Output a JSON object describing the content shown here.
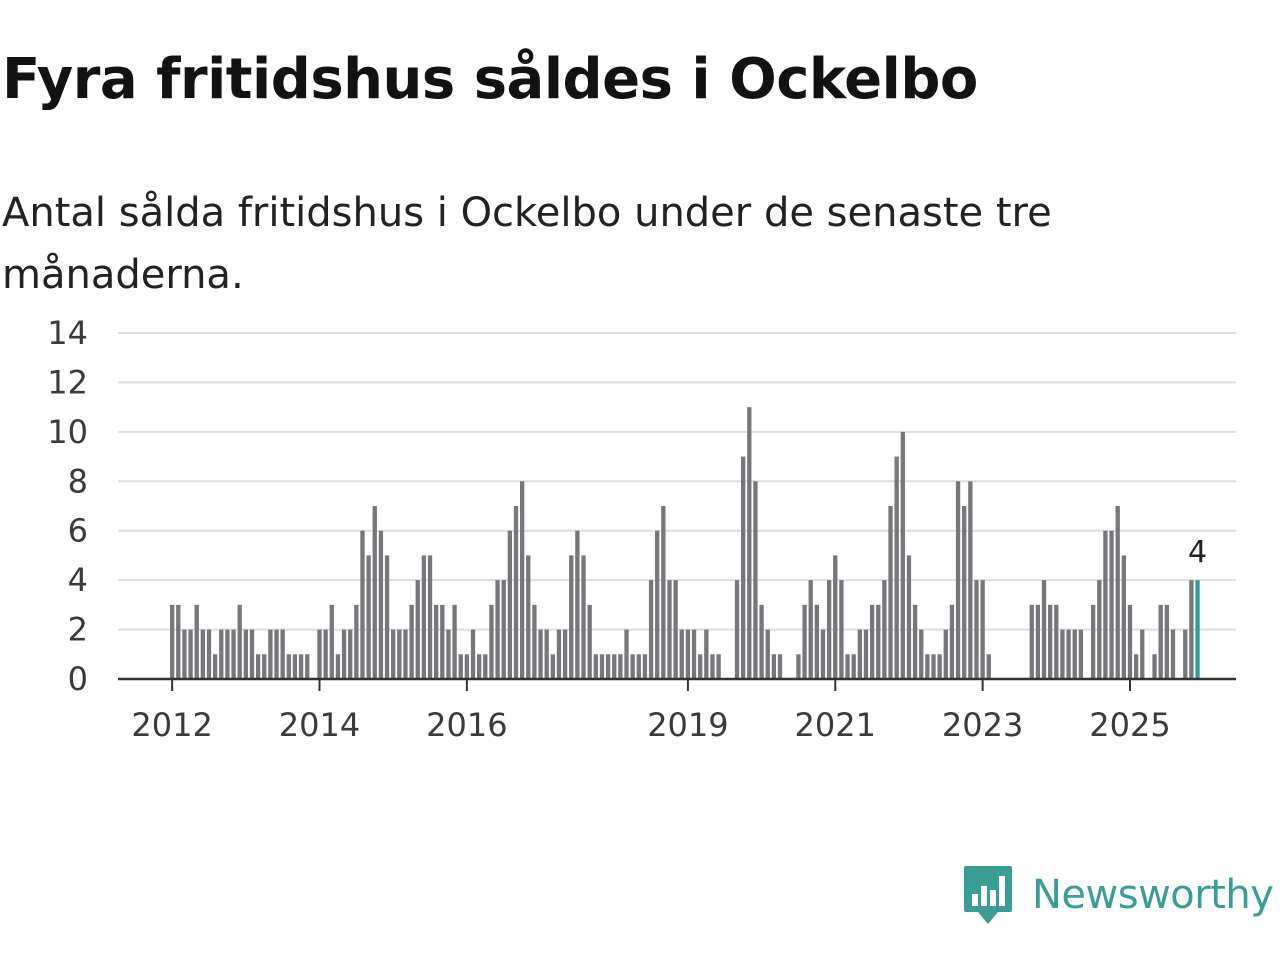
{
  "header": {
    "title": "Fyra fritidshus såldes i Ockelbo",
    "subtitle": "Antal sålda fritidshus i Ockelbo under de senaste tre månaderna."
  },
  "brand": {
    "name": "Newsworthy",
    "color": "#3a9e95"
  },
  "chart_data": {
    "type": "bar",
    "title": "Fyra fritidshus såldes i Ockelbo",
    "subtitle": "Antal sålda fritidshus i Ockelbo under de senaste tre månaderna.",
    "xlabel": "",
    "ylabel": "",
    "ylim": [
      0,
      14
    ],
    "yticks": [
      0,
      2,
      4,
      6,
      8,
      10,
      12,
      14
    ],
    "grid": true,
    "xticks": [
      {
        "label": "2012",
        "index": 0
      },
      {
        "label": "2014",
        "index": 24
      },
      {
        "label": "2016",
        "index": 48
      },
      {
        "label": "2019",
        "index": 84
      },
      {
        "label": "2021",
        "index": 108
      },
      {
        "label": "2023",
        "index": 132
      },
      {
        "label": "2025",
        "index": 156
      }
    ],
    "start": "2012-01",
    "frequency": "monthly",
    "values": [
      3,
      3,
      2,
      2,
      3,
      2,
      2,
      1,
      2,
      2,
      2,
      3,
      2,
      2,
      1,
      1,
      2,
      2,
      2,
      1,
      1,
      1,
      1,
      0,
      2,
      2,
      3,
      1,
      2,
      2,
      3,
      6,
      5,
      7,
      6,
      5,
      2,
      2,
      2,
      3,
      4,
      5,
      5,
      3,
      3,
      2,
      3,
      1,
      1,
      2,
      1,
      1,
      3,
      4,
      4,
      6,
      7,
      8,
      5,
      3,
      2,
      2,
      1,
      2,
      2,
      5,
      6,
      5,
      3,
      1,
      1,
      1,
      1,
      1,
      2,
      1,
      1,
      1,
      4,
      6,
      7,
      4,
      4,
      2,
      2,
      2,
      1,
      2,
      1,
      1,
      0,
      0,
      4,
      9,
      11,
      8,
      3,
      2,
      1,
      1,
      0,
      0,
      1,
      3,
      4,
      3,
      2,
      4,
      5,
      4,
      1,
      1,
      2,
      2,
      3,
      3,
      4,
      7,
      9,
      10,
      5,
      3,
      2,
      1,
      1,
      1,
      2,
      3,
      8,
      7,
      8,
      4,
      4,
      1,
      0,
      0,
      0,
      0,
      0,
      0,
      3,
      3,
      4,
      3,
      3,
      2,
      2,
      2,
      2,
      0,
      3,
      4,
      6,
      6,
      7,
      5,
      3,
      1,
      2,
      0,
      1,
      3,
      3,
      2,
      0,
      2,
      4,
      4
    ],
    "bar_color": "#76767b",
    "highlight_color": "#2f9c93",
    "highlight_last": true,
    "last_value_label": "4"
  }
}
